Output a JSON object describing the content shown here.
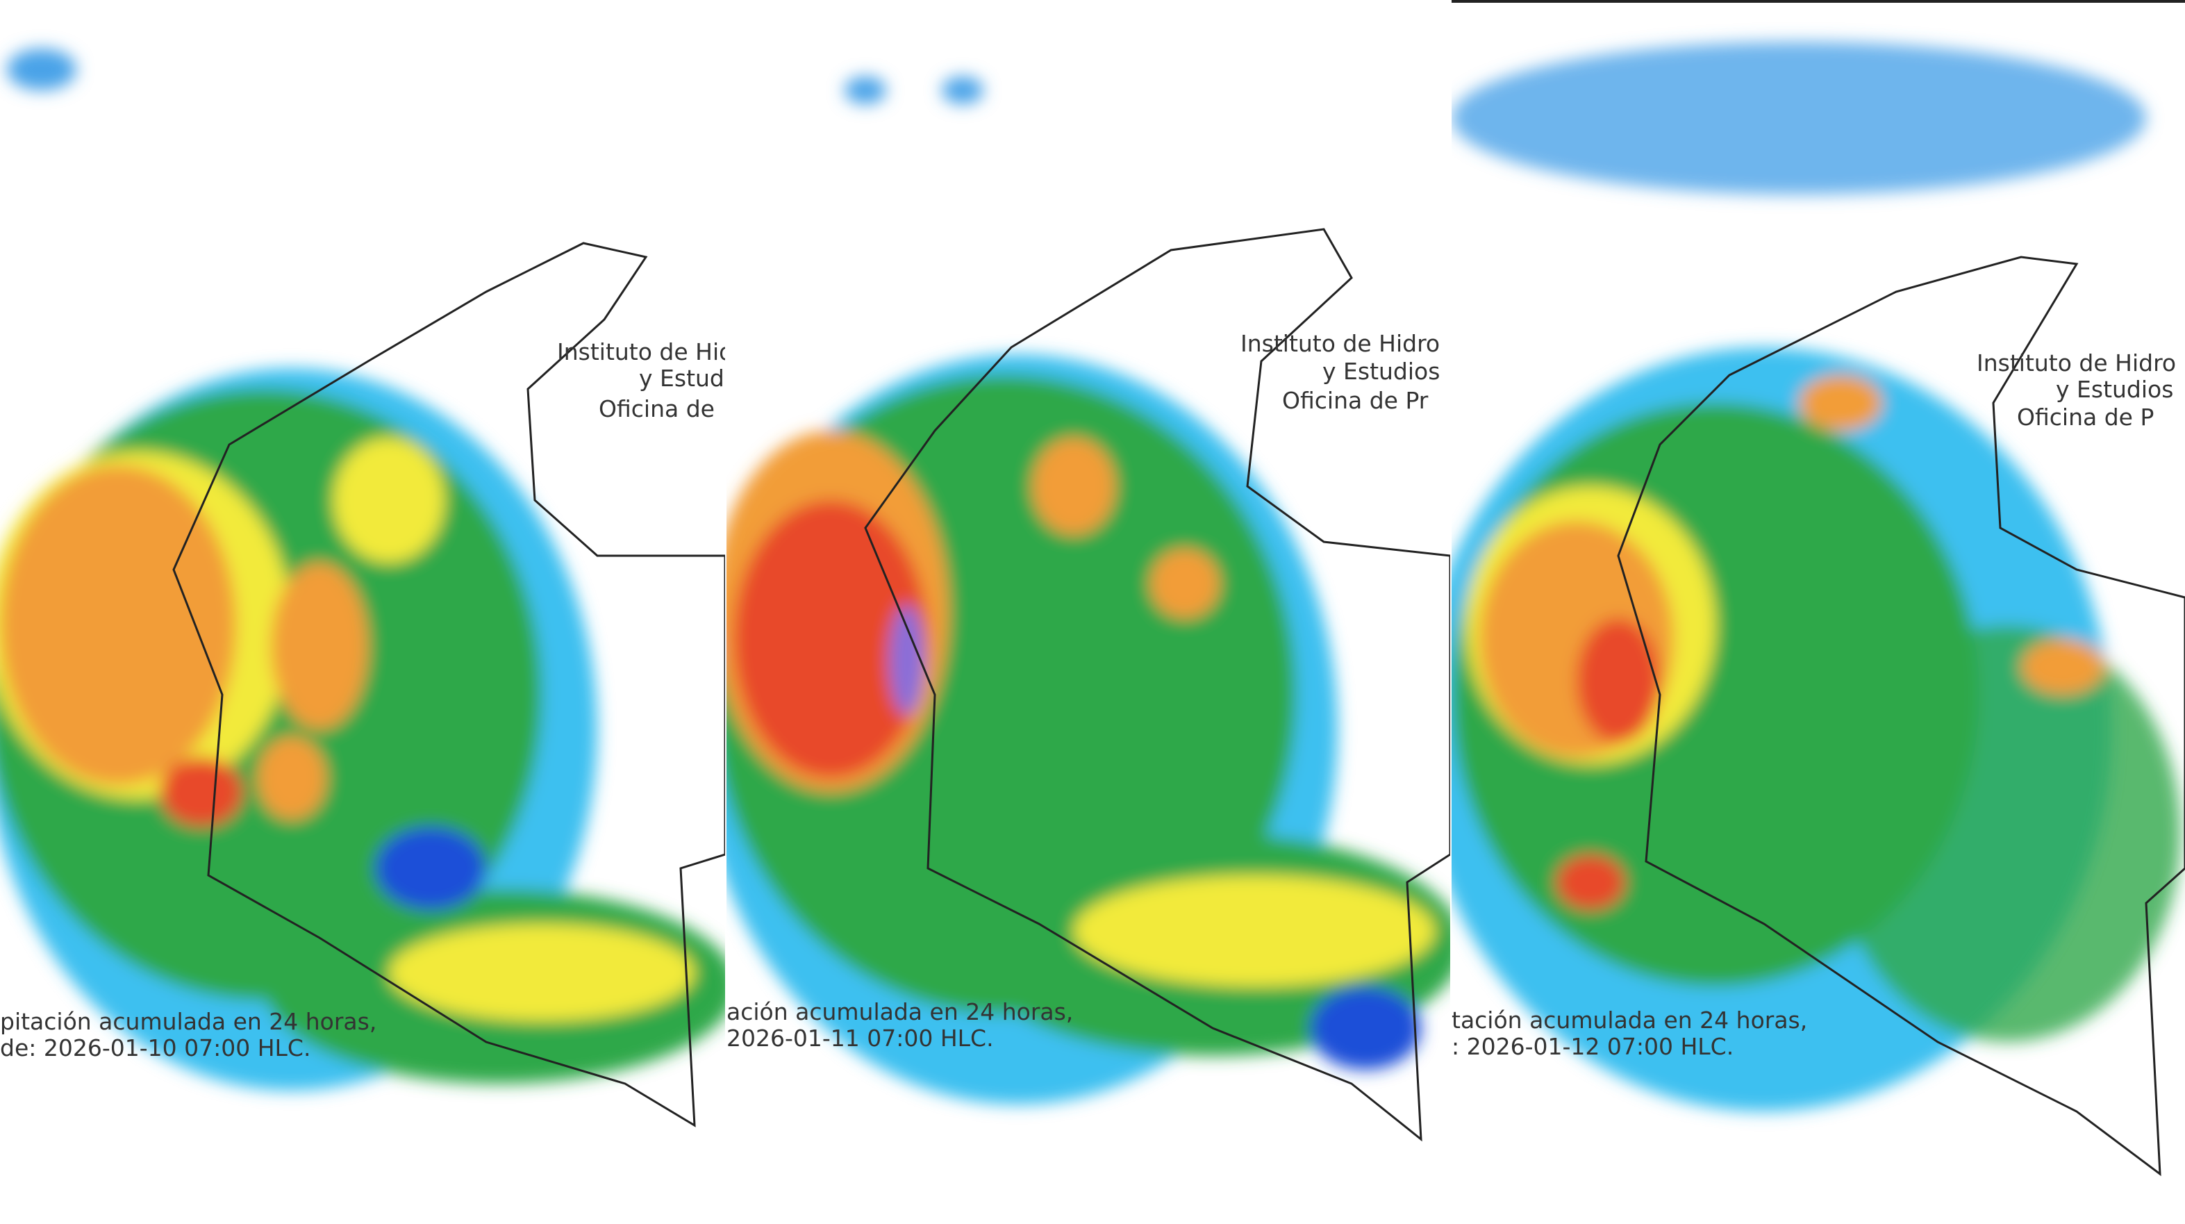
{
  "panels": [
    {
      "header": [
        "Instituto de Hidro",
        "y Estudio",
        "Oficina de"
      ],
      "caption": [
        "pitación acumulada en 24 horas,",
        "de: 2026-01-10 07:00 HLC."
      ]
    },
    {
      "header": [
        "Instituto de Hidro",
        "y Estudios",
        "Oficina de Pr"
      ],
      "caption": [
        "ación acumulada en 24 horas,",
        "2026-01-11 07:00 HLC."
      ]
    },
    {
      "header": [
        "Instituto de Hidro",
        "y Estudios",
        "Oficina de P"
      ],
      "caption": [
        "tación acumulada en 24 horas,",
        ": 2026-01-12 07:00 HLC."
      ]
    }
  ]
}
